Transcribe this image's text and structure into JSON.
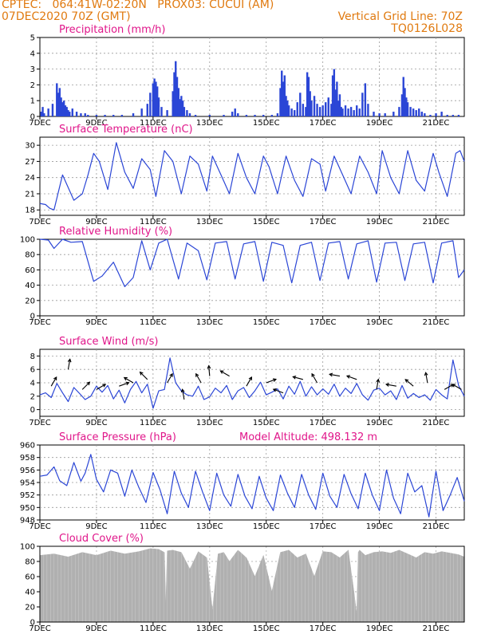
{
  "header": {
    "line1_left": "CPTEC:   064:41W-02:20N   PROX03: CUCUI (AM)",
    "line2_left": "07DEC2020 70Z (GMT)",
    "line2_right": "Vertical Grid Line: 70Z",
    "line3_right": "TQ0126L028"
  },
  "colors": {
    "header": "#e07a10",
    "title": "#e0168a",
    "series": "#2b46d6",
    "cloud": "#b0b0b0",
    "grid": "#9a9a9a"
  },
  "x_axis": {
    "start_day": 7,
    "end_day": 22,
    "tick_labels": [
      "7DEC",
      "9DEC",
      "11DEC",
      "13DEC",
      "15DEC",
      "17DEC",
      "19DEC",
      "21DEC"
    ],
    "tick_days": [
      7,
      9,
      11,
      13,
      15,
      17,
      19,
      21
    ]
  },
  "chart_data": [
    {
      "type": "bar",
      "title": "Precipitation (mm/h)",
      "ylim": [
        0,
        5
      ],
      "yticks": [
        0,
        1,
        2,
        3,
        4,
        5
      ],
      "x_day": [
        7.05,
        7.1,
        7.15,
        7.3,
        7.45,
        7.6,
        7.65,
        7.7,
        7.75,
        7.8,
        7.85,
        7.9,
        7.95,
        8.0,
        8.05,
        8.15,
        8.3,
        8.45,
        8.6,
        8.7,
        9.0,
        9.3,
        9.6,
        9.9,
        10.3,
        10.6,
        10.8,
        10.9,
        11.0,
        11.05,
        11.1,
        11.15,
        11.2,
        11.3,
        11.5,
        11.7,
        11.75,
        11.8,
        11.85,
        11.9,
        11.95,
        12.0,
        12.05,
        12.1,
        12.2,
        12.3,
        12.5,
        13.0,
        13.5,
        13.8,
        13.9,
        14.0,
        14.3,
        14.6,
        14.9,
        15.2,
        15.4,
        15.5,
        15.55,
        15.6,
        15.65,
        15.7,
        15.75,
        15.8,
        15.9,
        16.0,
        16.1,
        16.2,
        16.3,
        16.4,
        16.45,
        16.5,
        16.55,
        16.6,
        16.7,
        16.8,
        16.9,
        17.0,
        17.1,
        17.2,
        17.3,
        17.35,
        17.4,
        17.45,
        17.5,
        17.55,
        17.6,
        17.65,
        17.7,
        17.8,
        17.9,
        18.0,
        18.1,
        18.2,
        18.3,
        18.4,
        18.5,
        18.6,
        18.8,
        19.0,
        19.2,
        19.5,
        19.7,
        19.8,
        19.85,
        19.9,
        19.95,
        20.0,
        20.1,
        20.2,
        20.3,
        20.4,
        20.5,
        20.6,
        20.8,
        21.0,
        21.2,
        21.4,
        21.6,
        21.8
      ],
      "values": [
        0.3,
        0.6,
        0.2,
        0.5,
        0.8,
        2.1,
        1.5,
        1.8,
        1.2,
        0.9,
        1.0,
        0.7,
        0.6,
        0.4,
        0.3,
        0.5,
        0.3,
        0.2,
        0.2,
        0.1,
        0.1,
        0.1,
        0.1,
        0.1,
        0.2,
        0.5,
        0.8,
        1.5,
        2.1,
        2.4,
        2.2,
        1.9,
        1.2,
        0.6,
        0.4,
        1.6,
        2.8,
        3.5,
        2.5,
        1.8,
        1.1,
        1.3,
        1.0,
        0.6,
        0.4,
        0.2,
        0.1,
        0.1,
        0.1,
        0.3,
        0.5,
        0.2,
        0.1,
        0.1,
        0.1,
        0.1,
        0.2,
        1.8,
        2.9,
        2.2,
        2.6,
        1.3,
        1.0,
        0.7,
        0.5,
        0.4,
        0.9,
        1.5,
        0.8,
        0.6,
        2.8,
        2.5,
        1.6,
        1.0,
        1.3,
        0.8,
        0.6,
        0.7,
        0.9,
        1.2,
        0.8,
        2.6,
        3.0,
        1.7,
        2.2,
        1.0,
        1.4,
        0.6,
        0.5,
        0.7,
        0.5,
        0.6,
        0.4,
        0.7,
        0.5,
        1.5,
        2.1,
        0.8,
        0.3,
        0.2,
        0.2,
        0.3,
        0.6,
        1.4,
        2.5,
        1.8,
        1.2,
        0.9,
        0.6,
        0.5,
        0.4,
        0.5,
        0.3,
        0.2,
        0.1,
        0.2,
        0.3,
        0.1,
        0.1,
        0.1
      ]
    },
    {
      "type": "line",
      "title": "Surface Temperature (nC)",
      "ylim": [
        17,
        31.5
      ],
      "yticks": [
        18,
        21,
        24,
        27,
        30
      ],
      "x_day": [
        7.0,
        7.2,
        7.35,
        7.5,
        7.8,
        8.2,
        8.5,
        8.7,
        8.9,
        9.1,
        9.4,
        9.7,
        10.0,
        10.3,
        10.6,
        10.9,
        11.1,
        11.4,
        11.7,
        12.0,
        12.3,
        12.6,
        12.9,
        13.1,
        13.4,
        13.7,
        14.0,
        14.3,
        14.6,
        14.9,
        15.1,
        15.4,
        15.7,
        16.0,
        16.3,
        16.6,
        16.9,
        17.1,
        17.4,
        17.7,
        18.0,
        18.3,
        18.6,
        18.9,
        19.1,
        19.4,
        19.7,
        20.0,
        20.3,
        20.6,
        20.9,
        21.1,
        21.4,
        21.7,
        21.85,
        22.0
      ],
      "values": [
        19.2,
        19.0,
        18.3,
        18.0,
        24.5,
        19.8,
        21.0,
        24.5,
        28.5,
        27.0,
        21.8,
        30.5,
        25.0,
        22.0,
        27.5,
        25.5,
        20.5,
        29.0,
        27.0,
        21.0,
        28.0,
        26.5,
        21.5,
        28.0,
        24.5,
        21.0,
        28.5,
        24.0,
        21.0,
        28.0,
        26.0,
        21.0,
        28.0,
        23.5,
        20.5,
        27.5,
        26.5,
        21.5,
        28.0,
        24.5,
        21.0,
        28.0,
        25.0,
        21.0,
        29.0,
        24.0,
        21.0,
        29.0,
        23.5,
        21.5,
        28.5,
        25.0,
        20.5,
        28.5,
        29.0,
        27.0
      ]
    },
    {
      "type": "line",
      "title": "Relative Humidity (%)",
      "ylim": [
        0,
        100
      ],
      "yticks": [
        0,
        20,
        40,
        60,
        80,
        100
      ],
      "x_day": [
        7.0,
        7.3,
        7.5,
        7.8,
        8.1,
        8.5,
        8.9,
        9.2,
        9.6,
        10.0,
        10.3,
        10.6,
        10.9,
        11.2,
        11.5,
        11.9,
        12.2,
        12.6,
        12.9,
        13.2,
        13.6,
        13.9,
        14.2,
        14.6,
        14.9,
        15.2,
        15.6,
        15.9,
        16.2,
        16.6,
        16.9,
        17.2,
        17.6,
        17.9,
        18.2,
        18.6,
        18.9,
        19.2,
        19.6,
        19.9,
        20.2,
        20.6,
        20.9,
        21.2,
        21.6,
        21.8,
        22.0
      ],
      "values": [
        100,
        99,
        88,
        100,
        96,
        97,
        45,
        52,
        70,
        38,
        50,
        98,
        60,
        95,
        100,
        48,
        95,
        85,
        47,
        95,
        97,
        48,
        94,
        97,
        45,
        96,
        92,
        43,
        92,
        96,
        46,
        95,
        97,
        48,
        94,
        98,
        44,
        95,
        96,
        46,
        94,
        96,
        43,
        95,
        98,
        50,
        60
      ]
    },
    {
      "type": "line",
      "title": "Surface Wind (m/s)",
      "ylim": [
        -1,
        9
      ],
      "yticks": [
        0,
        2,
        4,
        6,
        8
      ],
      "x_day": [
        7.0,
        7.2,
        7.4,
        7.6,
        7.8,
        8.0,
        8.2,
        8.4,
        8.6,
        8.8,
        9.0,
        9.2,
        9.4,
        9.6,
        9.8,
        10.0,
        10.2,
        10.4,
        10.6,
        10.8,
        11.0,
        11.2,
        11.4,
        11.6,
        11.8,
        12.0,
        12.2,
        12.4,
        12.6,
        12.8,
        13.0,
        13.2,
        13.4,
        13.6,
        13.8,
        14.0,
        14.2,
        14.4,
        14.6,
        14.8,
        15.0,
        15.2,
        15.4,
        15.6,
        15.8,
        16.0,
        16.2,
        16.4,
        16.6,
        16.8,
        17.0,
        17.2,
        17.4,
        17.6,
        17.8,
        18.0,
        18.2,
        18.4,
        18.6,
        18.8,
        19.0,
        19.2,
        19.4,
        19.6,
        19.8,
        20.0,
        20.2,
        20.4,
        20.6,
        20.8,
        21.0,
        21.2,
        21.4,
        21.6,
        21.8,
        22.0
      ],
      "values": [
        2.2,
        2.5,
        1.8,
        3.9,
        2.5,
        1.2,
        3.3,
        2.4,
        1.5,
        2.0,
        3.5,
        2.6,
        3.6,
        1.6,
        2.9,
        1.0,
        3.0,
        4.2,
        2.5,
        3.8,
        0.2,
        2.8,
        3.0,
        7.7,
        4.0,
        2.8,
        2.2,
        2.0,
        3.5,
        1.5,
        1.9,
        3.2,
        2.5,
        3.6,
        1.5,
        2.8,
        3.3,
        1.8,
        2.8,
        4.1,
        2.2,
        2.6,
        3.1,
        1.6,
        3.5,
        2.3,
        4.2,
        2.0,
        3.4,
        2.2,
        3.1,
        2.3,
        3.8,
        2.0,
        3.2,
        2.4,
        3.9,
        2.2,
        1.4,
        2.9,
        3.2,
        2.2,
        2.8,
        1.5,
        3.6,
        1.7,
        2.4,
        1.8,
        2.2,
        1.4,
        3.0,
        2.2,
        1.6,
        7.4,
        3.6,
        2.0
      ],
      "arrows": [
        {
          "day": 7.4,
          "speed": 3.5,
          "dir": 60
        },
        {
          "day": 8.0,
          "speed": 6.0,
          "dir": 80
        },
        {
          "day": 8.5,
          "speed": 3.0,
          "dir": 45
        },
        {
          "day": 9.0,
          "speed": 3.0,
          "dir": 30
        },
        {
          "day": 9.8,
          "speed": 3.5,
          "dir": 20
        },
        {
          "day": 10.3,
          "speed": 4.0,
          "dir": 150
        },
        {
          "day": 10.8,
          "speed": 4.5,
          "dir": 135
        },
        {
          "day": 11.5,
          "speed": 4.0,
          "dir": 60
        },
        {
          "day": 12.1,
          "speed": 1.5,
          "dir": 100
        },
        {
          "day": 12.7,
          "speed": 4.0,
          "dir": 120
        },
        {
          "day": 13.0,
          "speed": 5.0,
          "dir": 95
        },
        {
          "day": 13.7,
          "speed": 5.0,
          "dir": 150
        },
        {
          "day": 14.3,
          "speed": 3.5,
          "dir": 60
        },
        {
          "day": 15.0,
          "speed": 4.0,
          "dir": 20
        },
        {
          "day": 15.6,
          "speed": 2.5,
          "dir": 160
        },
        {
          "day": 16.3,
          "speed": 4.5,
          "dir": 165
        },
        {
          "day": 16.8,
          "speed": 4.0,
          "dir": 120
        },
        {
          "day": 17.6,
          "speed": 5.0,
          "dir": 170
        },
        {
          "day": 18.2,
          "speed": 4.5,
          "dir": 160
        },
        {
          "day": 18.9,
          "speed": 3.0,
          "dir": 80
        },
        {
          "day": 19.6,
          "speed": 3.5,
          "dir": 170
        },
        {
          "day": 20.2,
          "speed": 3.5,
          "dir": 140
        },
        {
          "day": 20.7,
          "speed": 4.0,
          "dir": 100
        },
        {
          "day": 21.3,
          "speed": 3.0,
          "dir": 30
        },
        {
          "day": 21.9,
          "speed": 3.0,
          "dir": 150
        }
      ]
    },
    {
      "type": "line",
      "title": "Surface Pressure (hPa)",
      "annotation": "Model Altitude: 498.132 m",
      "ylim": [
        948,
        960
      ],
      "yticks": [
        948,
        950,
        952,
        954,
        956,
        958,
        960
      ],
      "x_day": [
        7.0,
        7.25,
        7.5,
        7.7,
        7.95,
        8.2,
        8.45,
        8.6,
        8.8,
        9.0,
        9.25,
        9.5,
        9.75,
        10.0,
        10.25,
        10.5,
        10.75,
        11.0,
        11.25,
        11.5,
        11.75,
        12.0,
        12.25,
        12.5,
        12.75,
        13.0,
        13.25,
        13.5,
        13.75,
        14.0,
        14.25,
        14.5,
        14.75,
        15.0,
        15.25,
        15.5,
        15.75,
        16.0,
        16.25,
        16.5,
        16.75,
        17.0,
        17.25,
        17.5,
        17.75,
        18.0,
        18.25,
        18.5,
        18.75,
        19.0,
        19.25,
        19.5,
        19.75,
        20.0,
        20.25,
        20.5,
        20.75,
        21.0,
        21.25,
        21.5,
        21.75,
        22.0
      ],
      "values": [
        955.0,
        955.2,
        956.5,
        954.3,
        953.5,
        957.2,
        954.2,
        955.5,
        958.5,
        954.5,
        952.5,
        956.0,
        955.5,
        951.8,
        956.0,
        953.2,
        950.8,
        955.6,
        952.8,
        949.0,
        955.8,
        952.3,
        950.0,
        955.8,
        952.5,
        949.5,
        955.5,
        952.0,
        950.2,
        955.3,
        951.8,
        949.8,
        955.0,
        951.5,
        949.5,
        955.2,
        952.3,
        950.0,
        955.3,
        952.0,
        949.7,
        955.5,
        951.8,
        950.0,
        955.3,
        952.2,
        949.8,
        955.5,
        952.0,
        949.5,
        956.0,
        951.5,
        949.0,
        955.5,
        952.5,
        953.5,
        948.5,
        955.8,
        949.5,
        952.0,
        954.8,
        951.0
      ]
    },
    {
      "type": "area",
      "title": "Cloud Cover (%)",
      "ylim": [
        0,
        100
      ],
      "yticks": [
        0,
        20,
        40,
        60,
        80,
        100
      ],
      "x_day": [
        7.0,
        7.5,
        8.0,
        8.5,
        9.0,
        9.5,
        10.0,
        10.5,
        10.9,
        11.2,
        11.4,
        11.45,
        11.5,
        11.7,
        12.0,
        12.3,
        12.6,
        12.9,
        13.1,
        13.3,
        13.5,
        13.7,
        14.0,
        14.3,
        14.6,
        14.9,
        15.2,
        15.5,
        15.8,
        16.1,
        16.4,
        16.7,
        17.0,
        17.3,
        17.6,
        17.9,
        18.1,
        18.2,
        18.25,
        18.3,
        18.5,
        18.8,
        19.1,
        19.4,
        19.7,
        20.0,
        20.3,
        20.6,
        20.9,
        21.2,
        21.5,
        21.8,
        22.0
      ],
      "values": [
        88,
        90,
        86,
        92,
        88,
        94,
        90,
        93,
        97,
        96,
        92,
        20,
        94,
        95,
        92,
        70,
        93,
        85,
        15,
        90,
        92,
        80,
        95,
        85,
        60,
        88,
        40,
        92,
        95,
        85,
        90,
        60,
        93,
        92,
        85,
        95,
        40,
        10,
        92,
        95,
        88,
        92,
        93,
        91,
        95,
        90,
        85,
        92,
        90,
        93,
        91,
        89,
        86
      ]
    }
  ]
}
